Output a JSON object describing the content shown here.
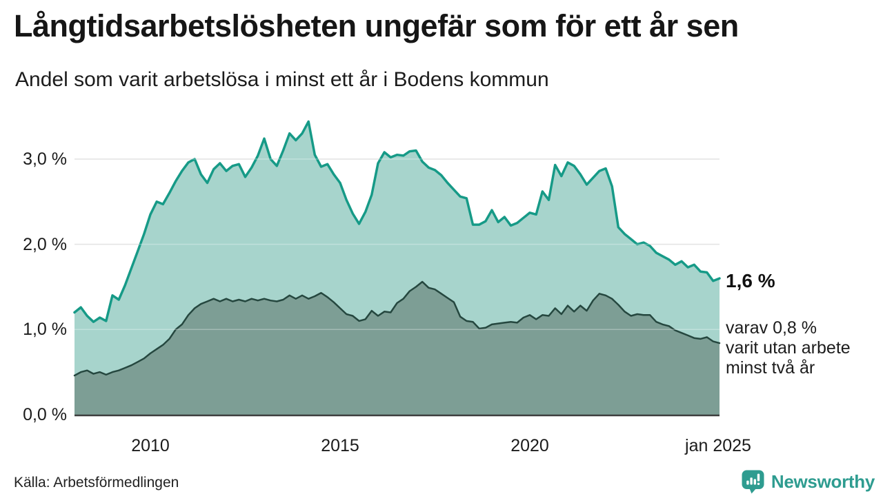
{
  "chart_data": {
    "type": "area",
    "title": "Långtidsarbetslösheten ungefär som för ett år sen",
    "subtitle": "Andel som varit arbetslösa i minst ett år i Bodens kommun",
    "x_start_year": 2008,
    "x_points_per_year": 6,
    "ylim": [
      0,
      3.5
    ],
    "grid": true,
    "y_ticks": [
      {
        "value": 3.0,
        "label": "3,0 %"
      },
      {
        "value": 2.0,
        "label": "2,0 %"
      },
      {
        "value": 1.0,
        "label": "1,0 %"
      },
      {
        "value": 0.0,
        "label": "0,0 %"
      }
    ],
    "x_ticks": [
      {
        "year": 2010,
        "label": "2010"
      },
      {
        "year": 2015,
        "label": "2015"
      },
      {
        "year": 2020,
        "label": "2020"
      },
      {
        "year": 2025,
        "label": "jan 2025"
      }
    ],
    "series": [
      {
        "name": "Andel som varit arbetslösa i minst ett år",
        "line_color": "#169a87",
        "fill_color": "#a7d4cc",
        "stroke_width": 3.5,
        "latest_value": 1.6,
        "values": [
          1.2,
          1.26,
          1.16,
          1.09,
          1.14,
          1.1,
          1.4,
          1.35,
          1.52,
          1.72,
          1.92,
          2.12,
          2.35,
          2.5,
          2.47,
          2.6,
          2.74,
          2.86,
          2.96,
          3.0,
          2.82,
          2.72,
          2.88,
          2.95,
          2.86,
          2.92,
          2.94,
          2.79,
          2.9,
          3.04,
          3.24,
          3.0,
          2.92,
          3.1,
          3.3,
          3.22,
          3.3,
          3.44,
          3.05,
          2.91,
          2.94,
          2.82,
          2.72,
          2.52,
          2.36,
          2.24,
          2.38,
          2.58,
          2.95,
          3.08,
          3.02,
          3.05,
          3.04,
          3.09,
          3.1,
          2.97,
          2.9,
          2.87,
          2.81,
          2.72,
          2.64,
          2.56,
          2.54,
          2.23,
          2.23,
          2.27,
          2.4,
          2.26,
          2.32,
          2.22,
          2.25,
          2.31,
          2.37,
          2.35,
          2.62,
          2.52,
          2.93,
          2.8,
          2.96,
          2.92,
          2.82,
          2.7,
          2.78,
          2.86,
          2.89,
          2.68,
          2.2,
          2.12,
          2.06,
          2.0,
          2.02,
          1.98,
          1.9,
          1.86,
          1.82,
          1.76,
          1.8,
          1.73,
          1.76,
          1.68,
          1.67,
          1.57,
          1.6
        ]
      },
      {
        "name": "Varav varit utan arbete minst två år",
        "line_color": "#25473f",
        "fill_color": "#7d9e95",
        "stroke_width": 2.5,
        "latest_value": 0.8,
        "values": [
          0.46,
          0.5,
          0.52,
          0.48,
          0.5,
          0.47,
          0.5,
          0.52,
          0.55,
          0.58,
          0.62,
          0.66,
          0.72,
          0.77,
          0.82,
          0.89,
          1.0,
          1.06,
          1.17,
          1.25,
          1.3,
          1.33,
          1.36,
          1.33,
          1.36,
          1.33,
          1.35,
          1.33,
          1.36,
          1.34,
          1.36,
          1.34,
          1.33,
          1.35,
          1.4,
          1.36,
          1.4,
          1.36,
          1.39,
          1.43,
          1.38,
          1.32,
          1.25,
          1.18,
          1.16,
          1.1,
          1.12,
          1.22,
          1.16,
          1.21,
          1.2,
          1.31,
          1.36,
          1.45,
          1.5,
          1.56,
          1.49,
          1.47,
          1.42,
          1.37,
          1.32,
          1.15,
          1.1,
          1.09,
          1.01,
          1.02,
          1.06,
          1.07,
          1.08,
          1.09,
          1.08,
          1.14,
          1.17,
          1.12,
          1.17,
          1.16,
          1.25,
          1.18,
          1.28,
          1.21,
          1.28,
          1.22,
          1.34,
          1.42,
          1.4,
          1.36,
          1.29,
          1.21,
          1.16,
          1.18,
          1.17,
          1.17,
          1.09,
          1.06,
          1.04,
          0.99,
          0.96,
          0.93,
          0.9,
          0.89,
          0.91,
          0.86,
          0.84
        ]
      }
    ],
    "annotations": {
      "latest_total": "1,6 %",
      "breakdown": "varav 0,8 %\nvarit utan arbete\nminst två år"
    },
    "colors": {
      "grid": "#d8d8d8",
      "grid_overlay": "rgba(255,255,255,0.30)",
      "axis": "#3d3d3d",
      "accent": "#169a87",
      "brand": "#2E9C90"
    },
    "source": "Källa: Arbetsförmedlingen",
    "brand": "Newsworthy"
  }
}
